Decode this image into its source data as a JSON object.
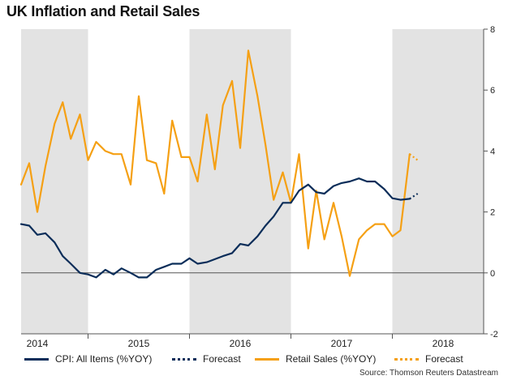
{
  "chart_data": {
    "type": "line",
    "title": "UK Inflation and Retail Sales",
    "source": "Source: Thomson Reuters Datastream",
    "ylim": [
      -2,
      8
    ],
    "y_ticks": [
      -2,
      0,
      2,
      4,
      6,
      8
    ],
    "y_axis_side": "right",
    "x_start": 2013.84,
    "x_end": 2018.4,
    "year_labels": [
      {
        "label": "2014",
        "x": 2014.0
      },
      {
        "label": "2015",
        "x": 2015.0
      },
      {
        "label": "2016",
        "x": 2016.0
      },
      {
        "label": "2017",
        "x": 2017.0
      },
      {
        "label": "2018",
        "x": 2018.0
      }
    ],
    "year_boundaries": [
      2014.5,
      2015.5,
      2016.5,
      2017.5
    ],
    "shaded_bands": [
      [
        2013.84,
        2014.5
      ],
      [
        2015.5,
        2016.5
      ],
      [
        2017.5,
        2018.4
      ]
    ],
    "legend": [
      {
        "label": "CPI: All Items (%YOY)",
        "style": "cpi"
      },
      {
        "label": "Forecast",
        "style": "cpi-forecast"
      },
      {
        "label": "Retail Sales (%YOY)",
        "style": "rs"
      },
      {
        "label": "Forecast",
        "style": "rs-forecast"
      }
    ],
    "series": [
      {
        "name": "CPI: All Items (%YOY)",
        "color": "#0a2d59",
        "points": [
          [
            2013.84,
            1.6
          ],
          [
            2013.92,
            1.55
          ],
          [
            2014.0,
            1.25
          ],
          [
            2014.08,
            1.3
          ],
          [
            2014.17,
            1.0
          ],
          [
            2014.25,
            0.55
          ],
          [
            2014.33,
            0.3
          ],
          [
            2014.42,
            0.0
          ],
          [
            2014.5,
            -0.05
          ],
          [
            2014.58,
            -0.15
          ],
          [
            2014.67,
            0.1
          ],
          [
            2014.75,
            -0.05
          ],
          [
            2014.83,
            0.15
          ],
          [
            2014.92,
            0.0
          ],
          [
            2015.0,
            -0.15
          ],
          [
            2015.08,
            -0.15
          ],
          [
            2015.17,
            0.1
          ],
          [
            2015.25,
            0.2
          ],
          [
            2015.33,
            0.3
          ],
          [
            2015.42,
            0.3
          ],
          [
            2015.5,
            0.48
          ],
          [
            2015.58,
            0.3
          ],
          [
            2015.67,
            0.35
          ],
          [
            2015.75,
            0.45
          ],
          [
            2015.83,
            0.55
          ],
          [
            2015.92,
            0.65
          ],
          [
            2016.0,
            0.95
          ],
          [
            2016.08,
            0.9
          ],
          [
            2016.17,
            1.2
          ],
          [
            2016.25,
            1.55
          ],
          [
            2016.33,
            1.85
          ],
          [
            2016.42,
            2.3
          ],
          [
            2016.5,
            2.3
          ],
          [
            2016.58,
            2.7
          ],
          [
            2016.67,
            2.9
          ],
          [
            2016.75,
            2.65
          ],
          [
            2016.83,
            2.6
          ],
          [
            2016.92,
            2.85
          ],
          [
            2017.0,
            2.95
          ],
          [
            2017.08,
            3.0
          ],
          [
            2017.17,
            3.1
          ],
          [
            2017.25,
            3.0
          ],
          [
            2017.33,
            3.0
          ],
          [
            2017.42,
            2.75
          ],
          [
            2017.5,
            2.45
          ],
          [
            2017.58,
            2.4
          ],
          [
            2017.67,
            2.43
          ]
        ],
        "forecast": [
          [
            2017.67,
            2.43
          ],
          [
            2017.75,
            2.6
          ]
        ]
      },
      {
        "name": "Retail Sales (%YOY)",
        "color": "#f5a014",
        "points": [
          [
            2013.84,
            2.9
          ],
          [
            2013.92,
            3.6
          ],
          [
            2014.0,
            2.0
          ],
          [
            2014.08,
            3.5
          ],
          [
            2014.17,
            4.9
          ],
          [
            2014.25,
            5.6
          ],
          [
            2014.33,
            4.4
          ],
          [
            2014.42,
            5.2
          ],
          [
            2014.5,
            3.7
          ],
          [
            2014.58,
            4.3
          ],
          [
            2014.67,
            4.0
          ],
          [
            2014.75,
            3.9
          ],
          [
            2014.83,
            3.9
          ],
          [
            2014.92,
            2.9
          ],
          [
            2015.0,
            5.8
          ],
          [
            2015.08,
            3.7
          ],
          [
            2015.17,
            3.6
          ],
          [
            2015.25,
            2.6
          ],
          [
            2015.33,
            5.0
          ],
          [
            2015.42,
            3.8
          ],
          [
            2015.5,
            3.8
          ],
          [
            2015.58,
            3.0
          ],
          [
            2015.67,
            5.2
          ],
          [
            2015.75,
            3.4
          ],
          [
            2015.83,
            5.5
          ],
          [
            2015.92,
            6.3
          ],
          [
            2016.0,
            4.1
          ],
          [
            2016.08,
            7.3
          ],
          [
            2016.17,
            5.8
          ],
          [
            2016.25,
            4.2
          ],
          [
            2016.33,
            2.4
          ],
          [
            2016.42,
            3.3
          ],
          [
            2016.5,
            2.3
          ],
          [
            2016.58,
            3.9
          ],
          [
            2016.67,
            0.8
          ],
          [
            2016.75,
            2.7
          ],
          [
            2016.83,
            1.1
          ],
          [
            2016.92,
            2.3
          ],
          [
            2017.0,
            1.2
          ],
          [
            2017.08,
            -0.1
          ],
          [
            2017.17,
            1.1
          ],
          [
            2017.25,
            1.4
          ],
          [
            2017.33,
            1.6
          ],
          [
            2017.42,
            1.6
          ],
          [
            2017.5,
            1.2
          ],
          [
            2017.58,
            1.4
          ],
          [
            2017.67,
            3.9
          ]
        ],
        "forecast": [
          [
            2017.67,
            3.9
          ],
          [
            2017.75,
            3.7
          ]
        ]
      }
    ]
  }
}
